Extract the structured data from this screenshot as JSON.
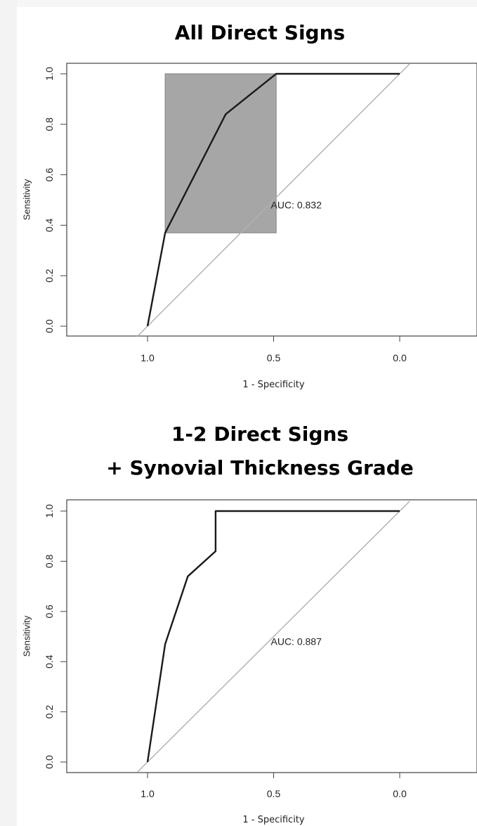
{
  "chart_data": [
    {
      "type": "line",
      "title": "All Direct Signs",
      "subtitle": "",
      "xlabel": "1 - Specificity",
      "ylabel": "Sensitivity",
      "x_reversed": true,
      "xlim": [
        1.0,
        0.0
      ],
      "ylim": [
        0.0,
        1.0
      ],
      "x_ticks": [
        1.0,
        0.5,
        0.0
      ],
      "x_tick_labels": [
        "1.0",
        "0.5",
        "0.0"
      ],
      "y_ticks": [
        0.0,
        0.2,
        0.4,
        0.6,
        0.8,
        1.0
      ],
      "y_tick_labels": [
        "0.0",
        "0.2",
        "0.4",
        "0.6",
        "0.8",
        "1.0"
      ],
      "grid": false,
      "series": [
        {
          "x": [
            1.0,
            0.93,
            0.69,
            0.49,
            0.0
          ],
          "y": [
            0.0,
            0.37,
            0.84,
            1.0,
            1.0
          ],
          "color": "#1a1a1a"
        }
      ],
      "reference_line": {
        "x": [
          1.04,
          -0.04
        ],
        "y": [
          -0.04,
          1.04
        ],
        "color": "#b0b0b0"
      },
      "ci_box": {
        "x": [
          0.93,
          0.49
        ],
        "y": [
          0.37,
          1.0
        ],
        "color": "#a6a6a6"
      },
      "annotation": {
        "text": "AUC: 0.832",
        "x": 0.5,
        "y": 0.48
      }
    },
    {
      "type": "line",
      "title": "1-2 Direct Signs",
      "subtitle": "+ Synovial Thickness Grade",
      "xlabel": "1 - Specificity",
      "ylabel": "Sensitivity",
      "x_reversed": true,
      "xlim": [
        1.0,
        0.0
      ],
      "ylim": [
        0.0,
        1.0
      ],
      "x_ticks": [
        1.0,
        0.5,
        0.0
      ],
      "x_tick_labels": [
        "1.0",
        "0.5",
        "0.0"
      ],
      "y_ticks": [
        0.0,
        0.2,
        0.4,
        0.6,
        0.8,
        1.0
      ],
      "y_tick_labels": [
        "0.0",
        "0.2",
        "0.4",
        "0.6",
        "0.8",
        "1.0"
      ],
      "grid": false,
      "series": [
        {
          "x": [
            1.0,
            0.93,
            0.84,
            0.73,
            0.73,
            0.0
          ],
          "y": [
            0.0,
            0.47,
            0.74,
            0.84,
            1.0,
            1.0
          ],
          "color": "#1a1a1a"
        }
      ],
      "reference_line": {
        "x": [
          1.04,
          -0.04
        ],
        "y": [
          -0.04,
          1.04
        ],
        "color": "#b0b0b0"
      },
      "annotation": {
        "text": "AUC: 0.887",
        "x": 0.5,
        "y": 0.48
      }
    }
  ]
}
